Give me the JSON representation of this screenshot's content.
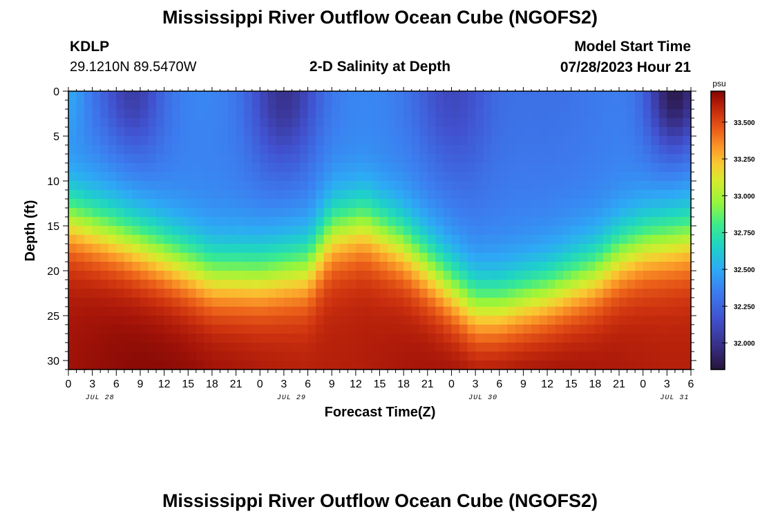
{
  "header": {
    "title": "Mississippi River Outflow Ocean Cube (NGOFS2)",
    "station": "KDLP",
    "coords": "29.1210N  89.5470W",
    "subtitle": "2-D Salinity at Depth",
    "model_label": "Model Start Time",
    "model_time": "07/28/2023 Hour 21"
  },
  "footer": {
    "title": "Mississippi River Outflow Ocean Cube (NGOFS2)"
  },
  "chart_data": {
    "type": "heatmap",
    "title": "2-D Salinity at Depth",
    "xlabel": "Forecast Time(Z)",
    "ylabel": "Depth (ft)",
    "x_tick_labels": [
      "0",
      "3",
      "6",
      "9",
      "12",
      "15",
      "18",
      "21",
      "0",
      "3",
      "6",
      "9",
      "12",
      "15",
      "18",
      "21",
      "0",
      "3",
      "6",
      "9",
      "12",
      "15",
      "18",
      "21",
      "0",
      "3",
      "6"
    ],
    "x_date_labels": [
      {
        "label": "JUL 28",
        "hour_index": 3
      },
      {
        "label": "JUL 29",
        "hour_index": 27
      },
      {
        "label": "JUL 30",
        "hour_index": 51
      },
      {
        "label": "JUL 31",
        "hour_index": 75
      }
    ],
    "x_range_hours": [
      0,
      78
    ],
    "y_ticks": [
      0,
      5,
      10,
      15,
      20,
      25,
      30
    ],
    "y_range_ft": [
      0,
      31
    ],
    "y_inverted": true,
    "colorbar": {
      "unit": "psu",
      "ticks": [
        "32.000",
        "32.250",
        "32.500",
        "32.750",
        "33.000",
        "33.250",
        "33.500"
      ],
      "range": [
        31.82,
        33.71
      ]
    },
    "halocline_depth_ft_by_hour": {
      "hours": [
        0,
        6,
        12,
        18,
        24,
        30,
        33,
        37,
        42,
        48,
        51,
        54,
        60,
        66,
        69,
        72,
        78
      ],
      "depth": [
        10,
        12,
        14.2,
        16.5,
        16.5,
        15.5,
        11.5,
        10.5,
        13,
        17.8,
        20,
        20,
        18.5,
        16.2,
        14.2,
        13,
        12
      ]
    },
    "surface_salinity_range_psu": [
      31.85,
      32.45
    ],
    "bottom_salinity_range_psu": [
      33.55,
      33.7
    ]
  }
}
